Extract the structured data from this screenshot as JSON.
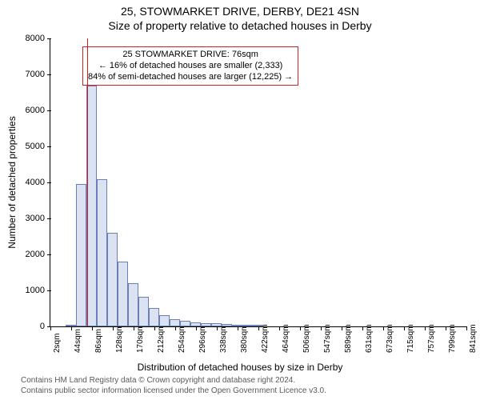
{
  "title_main": "25, STOWMARKET DRIVE, DERBY, DE21 4SN",
  "title_sub": "Size of property relative to detached houses in Derby",
  "ylabel": "Number of detached properties",
  "xlabel": "Distribution of detached houses by size in Derby",
  "footer_line1": "Contains HM Land Registry data © Crown copyright and database right 2024.",
  "footer_line2": "Contains public sector information licensed under the Open Government Licence v3.0.",
  "info_box": {
    "line1": "25 STOWMARKET DRIVE: 76sqm",
    "line2": "← 16% of detached houses are smaller (2,333)",
    "line3": "84% of semi-detached houses are larger (12,225) →"
  },
  "chart": {
    "type": "histogram",
    "ylim": [
      0,
      8000
    ],
    "ytick_step": 1000,
    "x_axis_unit": "sqm",
    "xticks": [
      2,
      44,
      86,
      128,
      170,
      212,
      254,
      296,
      338,
      380,
      422,
      464,
      506,
      547,
      589,
      631,
      673,
      715,
      757,
      799,
      841
    ],
    "marker_value_x": 76,
    "marker_color": "#d21e1e",
    "bar_fill": "#dbe3f3",
    "bar_stroke": "#6a7eb8",
    "background_color": "#ffffff",
    "axis_color": "#000000",
    "title_fontsize": 14,
    "label_fontsize": 12,
    "tick_fontsize": 11,
    "bars": [
      {
        "x_start": 32,
        "x_end": 53,
        "value": 40
      },
      {
        "x_start": 53,
        "x_end": 74,
        "value": 3950
      },
      {
        "x_start": 74,
        "x_end": 95,
        "value": 6700
      },
      {
        "x_start": 95,
        "x_end": 116,
        "value": 4100
      },
      {
        "x_start": 116,
        "x_end": 137,
        "value": 2600
      },
      {
        "x_start": 137,
        "x_end": 158,
        "value": 1800
      },
      {
        "x_start": 158,
        "x_end": 179,
        "value": 1200
      },
      {
        "x_start": 179,
        "x_end": 200,
        "value": 820
      },
      {
        "x_start": 200,
        "x_end": 221,
        "value": 520
      },
      {
        "x_start": 221,
        "x_end": 242,
        "value": 320
      },
      {
        "x_start": 242,
        "x_end": 263,
        "value": 210
      },
      {
        "x_start": 263,
        "x_end": 284,
        "value": 150
      },
      {
        "x_start": 284,
        "x_end": 305,
        "value": 120
      },
      {
        "x_start": 305,
        "x_end": 326,
        "value": 95
      },
      {
        "x_start": 326,
        "x_end": 347,
        "value": 80
      },
      {
        "x_start": 347,
        "x_end": 368,
        "value": 60
      },
      {
        "x_start": 368,
        "x_end": 389,
        "value": 45
      },
      {
        "x_start": 389,
        "x_end": 410,
        "value": 30
      },
      {
        "x_start": 410,
        "x_end": 431,
        "value": 20
      }
    ]
  }
}
